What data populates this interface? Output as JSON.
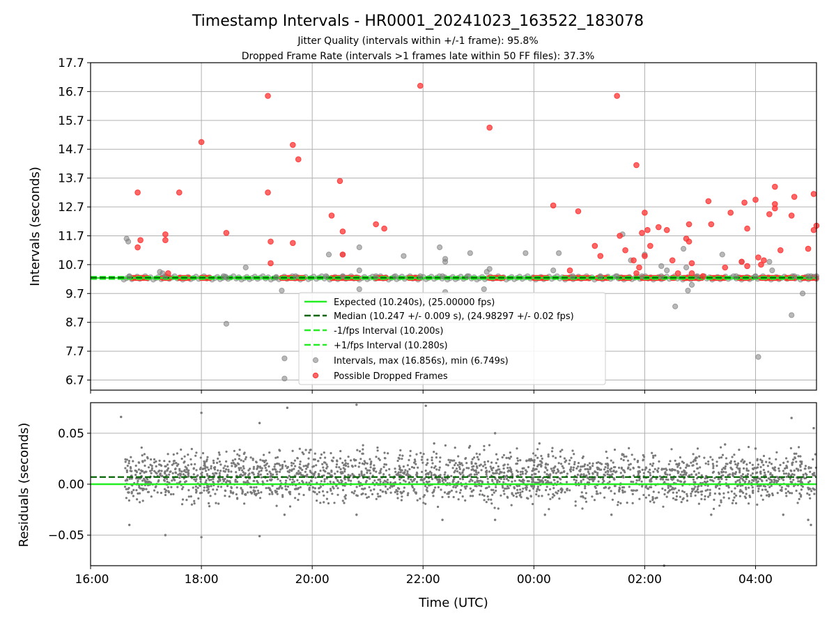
{
  "chart_data": [
    {
      "type": "scatter",
      "title": "Timestamp Intervals - HR0001_20241023_163522_183078",
      "subtitle_lines": [
        "Jitter Quality (intervals within +/-1 frame): 95.8%",
        "Dropped Frame Rate (intervals >1 frames late within 50 FF files): 37.3%"
      ],
      "xlabel": "",
      "ylabel": "Intervals (seconds)",
      "x_unit": "hours since 16:00 UTC",
      "xlim": [
        0,
        13.1
      ],
      "ylim": [
        6.35,
        17.7
      ],
      "ytick_labels": [
        "17.7",
        "16.7",
        "15.7",
        "14.7",
        "13.7",
        "12.7",
        "11.7",
        "10.7",
        "9.7",
        "8.7",
        "7.7",
        "6.7"
      ],
      "ytick_values": [
        17.7,
        16.7,
        15.7,
        14.7,
        13.7,
        12.7,
        11.7,
        10.7,
        9.7,
        8.7,
        7.7,
        6.7
      ],
      "grid": true,
      "legend_position": "lower-center",
      "expected_interval": 10.24,
      "median_interval": 10.247,
      "minus_fps_interval": 10.2,
      "plus_fps_interval": 10.28,
      "series": [
        {
          "name": "Expected (10.240s), (25.00000 fps)",
          "kind": "line",
          "style": "solid",
          "color": "#22ee22"
        },
        {
          "name": "Median (10.247 +/- 0.009 s), (24.98297 +/- 0.02 fps)",
          "kind": "line",
          "style": "dashed",
          "color": "#006400"
        },
        {
          "name": "-1/fps Interval (10.200s)",
          "kind": "line",
          "style": "dashed",
          "color": "#22ee22"
        },
        {
          "name": "+1/fps Interval (10.280s)",
          "kind": "line",
          "style": "dashed",
          "color": "#22ee22"
        },
        {
          "name": "Intervals, max (16.856s), min (6.749s)",
          "kind": "scatter",
          "color": "#808080",
          "points": [
            [
              0.65,
              11.6
            ],
            [
              0.68,
              11.5
            ],
            [
              0.7,
              10.3
            ],
            [
              1.25,
              10.45
            ],
            [
              1.3,
              10.4
            ],
            [
              1.35,
              10.3
            ],
            [
              2.4,
              10.3
            ],
            [
              2.45,
              10.25
            ],
            [
              2.45,
              8.65
            ],
            [
              2.8,
              10.6
            ],
            [
              3.35,
              10.25
            ],
            [
              3.45,
              9.8
            ],
            [
              3.5,
              7.45
            ],
            [
              3.5,
              6.75
            ],
            [
              3.7,
              10.3
            ],
            [
              4.25,
              10.3
            ],
            [
              4.3,
              11.05
            ],
            [
              4.55,
              10.3
            ],
            [
              4.55,
              11.05
            ],
            [
              4.85,
              9.85
            ],
            [
              4.85,
              10.5
            ],
            [
              4.85,
              11.3
            ],
            [
              5.15,
              10.3
            ],
            [
              5.5,
              10.3
            ],
            [
              5.65,
              11.0
            ],
            [
              5.95,
              10.3
            ],
            [
              6.3,
              11.3
            ],
            [
              6.35,
              10.3
            ],
            [
              6.4,
              9.75
            ],
            [
              6.4,
              10.8
            ],
            [
              6.4,
              10.9
            ],
            [
              6.8,
              10.3
            ],
            [
              6.85,
              11.1
            ],
            [
              7.1,
              9.85
            ],
            [
              7.15,
              10.45
            ],
            [
              7.2,
              10.55
            ],
            [
              7.85,
              11.1
            ],
            [
              8.35,
              10.5
            ],
            [
              8.45,
              11.1
            ],
            [
              8.7,
              10.3
            ],
            [
              9.2,
              10.3
            ],
            [
              9.5,
              10.3
            ],
            [
              9.6,
              11.75
            ],
            [
              9.75,
              10.85
            ],
            [
              9.95,
              10.3
            ],
            [
              10.0,
              11.05
            ],
            [
              10.3,
              10.3
            ],
            [
              10.3,
              10.65
            ],
            [
              10.4,
              10.5
            ],
            [
              10.55,
              9.25
            ],
            [
              10.7,
              11.25
            ],
            [
              10.75,
              10.6
            ],
            [
              10.78,
              9.8
            ],
            [
              10.85,
              10.0
            ],
            [
              10.95,
              10.3
            ],
            [
              11.4,
              11.05
            ],
            [
              11.65,
              10.3
            ],
            [
              11.75,
              10.8
            ],
            [
              12.0,
              10.3
            ],
            [
              12.05,
              7.5
            ],
            [
              12.25,
              10.8
            ],
            [
              12.3,
              10.5
            ],
            [
              12.65,
              8.95
            ],
            [
              12.85,
              9.7
            ],
            [
              12.7,
              10.3
            ],
            [
              12.95,
              10.3
            ],
            [
              13.0,
              10.3
            ],
            [
              13.1,
              10.3
            ]
          ]
        },
        {
          "name": "Possible Dropped Frames",
          "kind": "scatter",
          "color": "#ff3333",
          "points": [
            [
              0.85,
              13.2
            ],
            [
              0.85,
              11.3
            ],
            [
              0.9,
              11.55
            ],
            [
              1.35,
              11.75
            ],
            [
              1.35,
              11.55
            ],
            [
              1.4,
              10.4
            ],
            [
              1.6,
              13.2
            ],
            [
              2.0,
              14.95
            ],
            [
              2.45,
              11.8
            ],
            [
              3.2,
              16.55
            ],
            [
              3.2,
              13.2
            ],
            [
              3.25,
              10.75
            ],
            [
              3.25,
              11.5
            ],
            [
              3.65,
              14.85
            ],
            [
              3.65,
              11.45
            ],
            [
              3.75,
              14.35
            ],
            [
              4.35,
              12.4
            ],
            [
              4.5,
              13.6
            ],
            [
              4.55,
              11.05
            ],
            [
              4.55,
              11.85
            ],
            [
              5.15,
              12.1
            ],
            [
              5.3,
              11.95
            ],
            [
              5.95,
              16.9
            ],
            [
              7.2,
              15.45
            ],
            [
              8.35,
              12.75
            ],
            [
              8.65,
              10.5
            ],
            [
              8.8,
              12.55
            ],
            [
              9.1,
              11.35
            ],
            [
              9.2,
              11.0
            ],
            [
              9.5,
              16.55
            ],
            [
              9.55,
              11.7
            ],
            [
              9.65,
              11.2
            ],
            [
              9.8,
              10.85
            ],
            [
              9.85,
              14.15
            ],
            [
              9.85,
              10.4
            ],
            [
              9.9,
              10.6
            ],
            [
              9.95,
              11.8
            ],
            [
              10.0,
              12.5
            ],
            [
              10.0,
              11.0
            ],
            [
              10.05,
              11.9
            ],
            [
              10.1,
              11.35
            ],
            [
              10.25,
              12.0
            ],
            [
              10.4,
              11.9
            ],
            [
              10.5,
              10.85
            ],
            [
              10.6,
              10.4
            ],
            [
              10.75,
              11.6
            ],
            [
              10.8,
              12.1
            ],
            [
              10.8,
              11.5
            ],
            [
              10.85,
              10.75
            ],
            [
              10.85,
              10.4
            ],
            [
              11.05,
              10.3
            ],
            [
              11.15,
              12.9
            ],
            [
              11.2,
              12.1
            ],
            [
              11.45,
              10.6
            ],
            [
              11.55,
              12.5
            ],
            [
              11.75,
              10.8
            ],
            [
              11.8,
              12.85
            ],
            [
              11.85,
              11.95
            ],
            [
              11.85,
              10.65
            ],
            [
              12.0,
              12.95
            ],
            [
              12.05,
              10.95
            ],
            [
              12.1,
              10.7
            ],
            [
              12.15,
              10.85
            ],
            [
              12.25,
              12.45
            ],
            [
              12.35,
              12.8
            ],
            [
              12.35,
              12.65
            ],
            [
              12.35,
              13.4
            ],
            [
              12.45,
              11.2
            ],
            [
              12.65,
              12.4
            ],
            [
              12.7,
              13.05
            ],
            [
              12.95,
              11.25
            ],
            [
              13.05,
              13.15
            ],
            [
              13.05,
              11.9
            ],
            [
              13.1,
              12.05
            ]
          ]
        }
      ]
    },
    {
      "type": "scatter",
      "xlabel": "Time (UTC)",
      "ylabel": "Residuals (seconds)",
      "x_unit": "hours since 16:00 UTC",
      "xlim": [
        0,
        13.1
      ],
      "ylim": [
        -0.08,
        0.08
      ],
      "xtick_labels": [
        "16:00",
        "18:00",
        "20:00",
        "22:00",
        "00:00",
        "02:00",
        "04:00"
      ],
      "xtick_values": [
        0,
        2,
        4,
        6,
        8,
        10,
        12
      ],
      "ytick_labels": [
        "0.05",
        "0.00",
        "−0.05"
      ],
      "ytick_values": [
        0.05,
        0.0,
        -0.05
      ],
      "grid": true,
      "expected_line": 0.0,
      "median_line": 0.007,
      "residual_band": {
        "center": 0.007,
        "spread": 0.012,
        "x_start": 0.62
      },
      "outliers": [
        [
          0.55,
          0.066
        ],
        [
          2.0,
          0.07
        ],
        [
          3.05,
          0.06
        ],
        [
          3.55,
          0.075
        ],
        [
          4.8,
          0.078
        ],
        [
          6.05,
          0.077
        ],
        [
          6.2,
          0.04
        ],
        [
          7.3,
          0.05
        ],
        [
          8.1,
          0.04
        ],
        [
          11.45,
          0.039
        ],
        [
          12.0,
          0.035
        ],
        [
          12.65,
          0.065
        ],
        [
          13.05,
          0.055
        ],
        [
          0.7,
          -0.04
        ],
        [
          1.35,
          -0.05
        ],
        [
          2.0,
          -0.052
        ],
        [
          3.05,
          -0.051
        ],
        [
          3.5,
          -0.03
        ],
        [
          4.8,
          -0.03
        ],
        [
          6.35,
          -0.035
        ],
        [
          7.3,
          -0.035
        ],
        [
          8.2,
          -0.03
        ],
        [
          9.4,
          -0.03
        ],
        [
          10.35,
          -0.08
        ],
        [
          11.2,
          -0.03
        ],
        [
          12.5,
          -0.03
        ],
        [
          12.95,
          -0.035
        ],
        [
          13.0,
          -0.04
        ]
      ]
    }
  ]
}
